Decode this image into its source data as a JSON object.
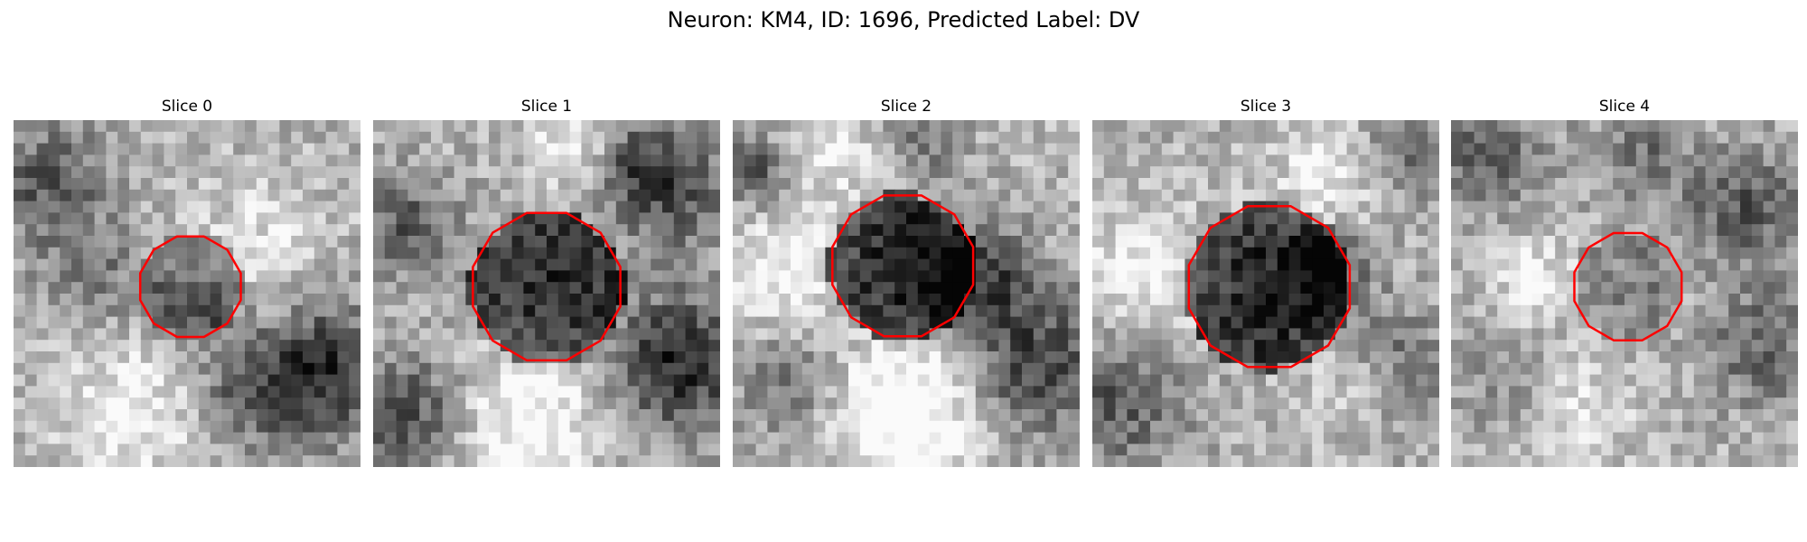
{
  "figure": {
    "title": "Neuron: KM4, ID: 1696, Predicted Label: DV"
  },
  "colors": {
    "contour": "#ff0000",
    "background": "#ffffff"
  },
  "panels": [
    {
      "title": "Slice 0",
      "seed": 11,
      "roi_center": [
        0.51,
        0.48
      ],
      "roi_radius": 0.15,
      "roi_darkness": 0.25,
      "dark_regions": [
        [
          0.1,
          0.18,
          0.12,
          0.35
        ],
        [
          0.22,
          0.45,
          0.1,
          0.25
        ],
        [
          0.88,
          0.72,
          0.14,
          0.55
        ],
        [
          0.65,
          0.8,
          0.1,
          0.25
        ],
        [
          0.55,
          0.55,
          0.1,
          0.25
        ]
      ],
      "light_regions": [
        [
          0.35,
          0.85,
          0.15,
          0.25
        ],
        [
          0.7,
          0.4,
          0.15,
          0.2
        ]
      ]
    },
    {
      "title": "Slice 1",
      "seed": 23,
      "roi_center": [
        0.5,
        0.48
      ],
      "roi_radius": 0.22,
      "roi_darkness": 0.55,
      "dark_regions": [
        [
          0.1,
          0.3,
          0.1,
          0.35
        ],
        [
          0.1,
          0.85,
          0.12,
          0.4
        ],
        [
          0.88,
          0.7,
          0.14,
          0.55
        ],
        [
          0.85,
          0.2,
          0.12,
          0.4
        ],
        [
          0.75,
          0.1,
          0.08,
          0.3
        ]
      ],
      "light_regions": [
        [
          0.45,
          0.88,
          0.15,
          0.35
        ],
        [
          0.6,
          0.05,
          0.1,
          0.25
        ]
      ]
    },
    {
      "title": "Slice 2",
      "seed": 37,
      "roi_center": [
        0.49,
        0.42
      ],
      "roi_radius": 0.21,
      "roi_darkness": 0.6,
      "dark_regions": [
        [
          0.72,
          0.45,
          0.1,
          0.45
        ],
        [
          0.88,
          0.7,
          0.14,
          0.45
        ],
        [
          0.05,
          0.15,
          0.06,
          0.45
        ],
        [
          0.15,
          0.75,
          0.1,
          0.25
        ],
        [
          0.55,
          0.05,
          0.08,
          0.25
        ]
      ],
      "light_regions": [
        [
          0.5,
          0.85,
          0.14,
          0.45
        ],
        [
          0.15,
          0.45,
          0.12,
          0.25
        ],
        [
          0.3,
          0.1,
          0.1,
          0.2
        ]
      ]
    },
    {
      "title": "Slice 3",
      "seed": 53,
      "roi_center": [
        0.51,
        0.48
      ],
      "roi_radius": 0.24,
      "roi_darkness": 0.6,
      "dark_regions": [
        [
          0.08,
          0.8,
          0.14,
          0.35
        ],
        [
          0.85,
          0.7,
          0.12,
          0.3
        ],
        [
          0.9,
          0.1,
          0.1,
          0.3
        ],
        [
          0.7,
          0.42,
          0.08,
          0.35
        ]
      ],
      "light_regions": [
        [
          0.15,
          0.45,
          0.14,
          0.25
        ],
        [
          0.7,
          0.15,
          0.12,
          0.25
        ],
        [
          0.75,
          0.75,
          0.1,
          0.25
        ]
      ]
    },
    {
      "title": "Slice 4",
      "seed": 71,
      "roi_center": [
        0.51,
        0.48
      ],
      "roi_radius": 0.16,
      "roi_darkness": 0.2,
      "dark_regions": [
        [
          0.1,
          0.1,
          0.12,
          0.3
        ],
        [
          0.85,
          0.25,
          0.12,
          0.35
        ],
        [
          0.9,
          0.65,
          0.12,
          0.3
        ],
        [
          0.15,
          0.75,
          0.1,
          0.2
        ],
        [
          0.55,
          0.1,
          0.1,
          0.25
        ]
      ],
      "light_regions": [
        [
          0.35,
          0.85,
          0.12,
          0.2
        ],
        [
          0.25,
          0.45,
          0.1,
          0.2
        ]
      ]
    }
  ]
}
